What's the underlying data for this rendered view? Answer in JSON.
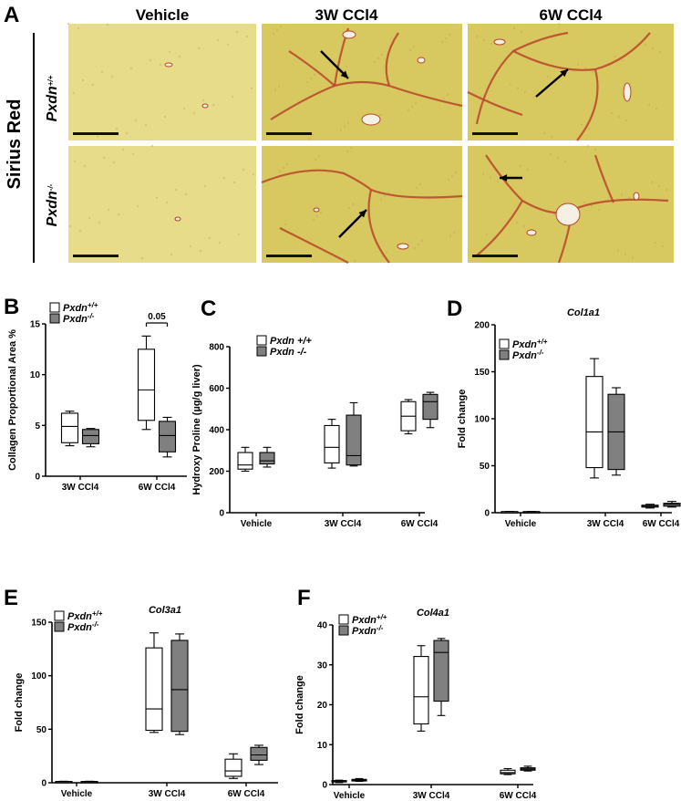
{
  "panel_letters": {
    "a": "A",
    "b": "B",
    "c": "C",
    "d": "D",
    "e": "E",
    "f": "F"
  },
  "histology": {
    "stain_label": "Sirius Red",
    "columns": [
      "Vehicle",
      "3W CCl4",
      "6W CCl4"
    ],
    "rows": [
      {
        "base": "Pxdn",
        "sup": "+/+"
      },
      {
        "base": "Pxdn",
        "sup": "-/-"
      }
    ],
    "colors": {
      "tissue": "#d8c860",
      "tissue_light": "#e6dc8a",
      "collagen": "#b8452a",
      "vessel": "#f4f1e4"
    }
  },
  "colors": {
    "wildtype_fill": "#ffffff",
    "knockout_fill": "#808080",
    "line": "#000000"
  },
  "chart_data": [
    {
      "panel": "B",
      "type": "box",
      "title": "",
      "ylabel": "Collagen Proportional Area %",
      "ylim": [
        0,
        15
      ],
      "yticks": [
        "0",
        "5",
        "10",
        "15"
      ],
      "categories": [
        "3W CCl4",
        "6W CCl4"
      ],
      "legend": [
        {
          "base": "Pxdn",
          "sup": "+/+"
        },
        {
          "base": "Pxdn",
          "sup": "-/-"
        }
      ],
      "annotation": "0.05",
      "series": [
        {
          "name": "Pxdn+/+",
          "boxes": [
            [
              3.0,
              3.3,
              4.9,
              6.2,
              6.4
            ],
            [
              4.6,
              5.5,
              8.5,
              12.5,
              13.8
            ]
          ]
        },
        {
          "name": "Pxdn-/-",
          "boxes": [
            [
              2.9,
              3.2,
              4.0,
              4.6,
              4.7
            ],
            [
              1.9,
              2.4,
              4.0,
              5.4,
              5.8
            ]
          ]
        }
      ]
    },
    {
      "panel": "C",
      "type": "box",
      "title": "",
      "ylabel": "Hydroxy Proline (µg/g liver)",
      "ylim": [
        0,
        800
      ],
      "yticks": [
        "0",
        "200",
        "400",
        "600",
        "800"
      ],
      "categories": [
        "Vehicle",
        "3W CCl4",
        "6W CCl4"
      ],
      "legend": [
        {
          "base": "Pxdn +/+",
          "sup": ""
        },
        {
          "base": "Pxdn -/-",
          "sup": ""
        }
      ],
      "series": [
        {
          "name": "Pxdn +/+",
          "boxes": [
            [
              200,
              210,
              230,
              290,
              315
            ],
            [
              215,
              240,
              315,
              420,
              450
            ],
            [
              380,
              395,
              465,
              535,
              545
            ]
          ]
        },
        {
          "name": "Pxdn -/-",
          "boxes": [
            [
              220,
              235,
              250,
              290,
              315
            ],
            [
              225,
              230,
              275,
              470,
              530
            ],
            [
              410,
              450,
              535,
              570,
              580
            ]
          ]
        }
      ]
    },
    {
      "panel": "D",
      "type": "box",
      "title": "Col1a1",
      "ylabel": "Fold change",
      "ylim": [
        0,
        200
      ],
      "yticks": [
        "0",
        "50",
        "100",
        "150",
        "200"
      ],
      "categories": [
        "Vehicle",
        "3W CCl4",
        "6W CCl4"
      ],
      "legend": [
        {
          "base": "Pxdn",
          "sup": "+/+"
        },
        {
          "base": "Pxdn",
          "sup": "-/-"
        }
      ],
      "series": [
        {
          "name": "Pxdn+/+",
          "boxes": [
            [
              0.6,
              0.8,
              1.0,
              1.2,
              1.4
            ],
            [
              37,
              48,
              86,
              145,
              164
            ],
            [
              5,
              6,
              7,
              8,
              9
            ]
          ]
        },
        {
          "name": "Pxdn-/-",
          "boxes": [
            [
              0.6,
              0.8,
              1.0,
              1.2,
              1.4
            ],
            [
              40,
              46,
              86,
              126,
              133
            ],
            [
              6,
              7,
              9,
              10,
              12
            ]
          ]
        }
      ]
    },
    {
      "panel": "E",
      "type": "box",
      "title": "Col3a1",
      "ylabel": "Fold change",
      "ylim": [
        0,
        150
      ],
      "yticks": [
        "0",
        "50",
        "100",
        "150"
      ],
      "categories": [
        "Vehicle",
        "3W CCl4",
        "6W CCl4"
      ],
      "legend": [
        {
          "base": "Pxdn",
          "sup": "+/+"
        },
        {
          "base": "Pxdn",
          "sup": "-/-"
        }
      ],
      "series": [
        {
          "name": "Pxdn+/+",
          "boxes": [
            [
              0.5,
              0.7,
              1.0,
              1.2,
              1.4
            ],
            [
              47,
              49,
              69,
              126,
              140
            ],
            [
              4,
              6,
              11,
              22,
              27
            ]
          ]
        },
        {
          "name": "Pxdn-/-",
          "boxes": [
            [
              0.5,
              0.7,
              1.0,
              1.2,
              1.4
            ],
            [
              45,
              48,
              87,
              133,
              139
            ],
            [
              17,
              21,
              26,
              33,
              35
            ]
          ]
        }
      ]
    },
    {
      "panel": "F",
      "type": "box",
      "title": "Col4a1",
      "ylabel": "Fold change",
      "ylim": [
        0,
        40
      ],
      "yticks": [
        "0",
        "10",
        "20",
        "30",
        "40"
      ],
      "categories": [
        "Vehicle",
        "3W CCl4",
        "6W CCl4"
      ],
      "legend": [
        {
          "base": "Pxdn",
          "sup": "+/+"
        },
        {
          "base": "Pxdn",
          "sup": "-/-"
        }
      ],
      "series": [
        {
          "name": "Pxdn+/+",
          "boxes": [
            [
              0.5,
              0.7,
              0.9,
              1.0,
              1.1
            ],
            [
              13.4,
              15.2,
              22.0,
              32.1,
              34.8
            ],
            [
              2.5,
              2.7,
              3.0,
              3.6,
              4.0
            ]
          ]
        },
        {
          "name": "Pxdn-/-",
          "boxes": [
            [
              0.8,
              0.9,
              1.1,
              1.3,
              1.5
            ],
            [
              17.3,
              20.9,
              33.1,
              36.1,
              36.6
            ],
            [
              3.4,
              3.6,
              3.9,
              4.2,
              4.6
            ]
          ]
        }
      ]
    }
  ]
}
